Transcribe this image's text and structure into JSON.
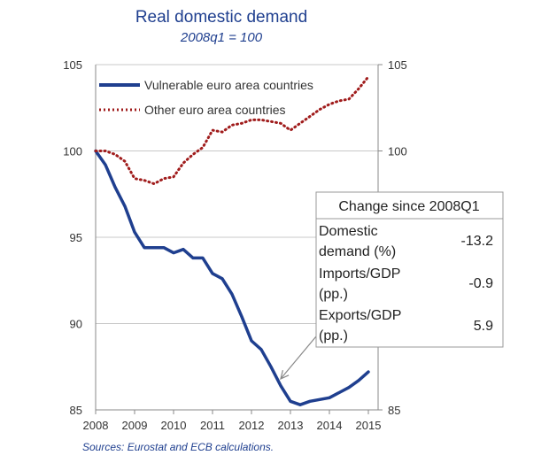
{
  "chart_data": {
    "type": "line",
    "title": "Real domestic demand",
    "subtitle": "2008q1 = 100",
    "x_ticks": [
      "2008",
      "2009",
      "2010",
      "2011",
      "2012",
      "2013",
      "2014",
      "2015"
    ],
    "xlim": [
      2008.0,
      2015.25
    ],
    "ylim": [
      85,
      105
    ],
    "y_ticks": [
      "85",
      "90",
      "95",
      "100",
      "105"
    ],
    "y_ticks_right": [
      "85",
      "100",
      "105"
    ],
    "grid": true,
    "legend_position": "top-left",
    "series": [
      {
        "name": "Vulnerable euro area countries",
        "color": "#1f3f8f",
        "style": "solid",
        "x": [
          2008.0,
          2008.25,
          2008.5,
          2008.75,
          2009.0,
          2009.25,
          2009.5,
          2009.75,
          2010.0,
          2010.25,
          2010.5,
          2010.75,
          2011.0,
          2011.25,
          2011.5,
          2011.75,
          2012.0,
          2012.25,
          2012.5,
          2012.75,
          2013.0,
          2013.25,
          2013.5,
          2013.75,
          2014.0,
          2014.25,
          2014.5,
          2014.75,
          2015.0
        ],
        "values": [
          100.0,
          99.2,
          97.9,
          96.8,
          95.3,
          94.4,
          94.4,
          94.4,
          94.1,
          94.3,
          93.8,
          93.8,
          92.9,
          92.6,
          91.7,
          90.4,
          89.0,
          88.5,
          87.5,
          86.4,
          85.5,
          85.3,
          85.5,
          85.6,
          85.7,
          86.0,
          86.3,
          86.7,
          87.2
        ]
      },
      {
        "name": "Other euro area countries",
        "color": "#a01c1c",
        "style": "dotted",
        "x": [
          2008.0,
          2008.25,
          2008.5,
          2008.75,
          2009.0,
          2009.25,
          2009.5,
          2009.75,
          2010.0,
          2010.25,
          2010.5,
          2010.75,
          2011.0,
          2011.25,
          2011.5,
          2011.75,
          2012.0,
          2012.25,
          2012.5,
          2012.75,
          2013.0,
          2013.25,
          2013.5,
          2013.75,
          2014.0,
          2014.25,
          2014.5,
          2014.75,
          2015.0
        ],
        "values": [
          100.0,
          100.0,
          99.8,
          99.4,
          98.4,
          98.3,
          98.1,
          98.4,
          98.5,
          99.3,
          99.8,
          100.2,
          101.2,
          101.1,
          101.5,
          101.6,
          101.8,
          101.8,
          101.7,
          101.6,
          101.2,
          101.6,
          102.0,
          102.4,
          102.7,
          102.9,
          103.0,
          103.6,
          104.3
        ]
      }
    ],
    "annotation": {
      "title": "Change since 2008Q1",
      "rows": [
        {
          "label_lines": [
            "Domestic",
            "demand (%)"
          ],
          "value": "-13.2"
        },
        {
          "label_lines": [
            "Imports/GDP",
            "(pp.)"
          ],
          "value": "-0.9"
        },
        {
          "label_lines": [
            "Exports/GDP",
            "(pp.)"
          ],
          "value": "5.9"
        }
      ],
      "arrow_target": {
        "x": 2012.75,
        "y": 86.8
      }
    }
  },
  "source_note": "Sources: Eurostat and ECB calculations.",
  "colors": {
    "axis": "#888888",
    "grid": "#c8c8c8",
    "box_border": "#999999",
    "arrow": "#888888"
  }
}
